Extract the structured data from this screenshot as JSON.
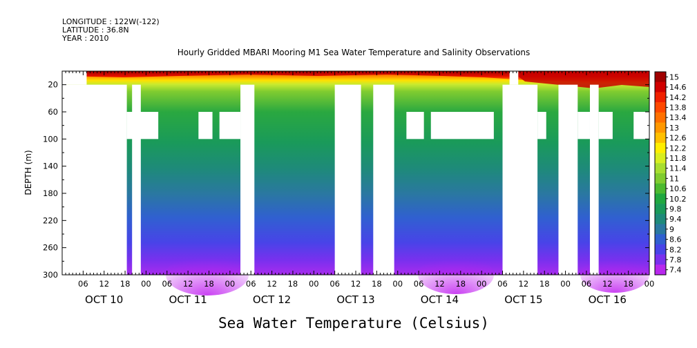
{
  "meta": {
    "longitude": "LONGITUDE : 122W(-122)",
    "latitude": "LATITUDE : 36.8N",
    "year": "YEAR : 2010"
  },
  "chart_data": {
    "type": "heatmap",
    "title": "Hourly Gridded MBARI Mooring M1 Sea Water Temperature and Salinity Observations",
    "xlabel": "Sea Water Temperature (Celsius)",
    "ylabel": "DEPTH (m)",
    "x_hour_range": [
      0,
      168
    ],
    "x_day_labels": [
      "OCT 10",
      "OCT 11",
      "OCT 12",
      "OCT 13",
      "OCT 14",
      "OCT 15",
      "OCT 16"
    ],
    "x_hour_ticks": [
      "06",
      "12",
      "18",
      "00"
    ],
    "ylim": [
      300,
      0
    ],
    "y_ticks": [
      20,
      60,
      100,
      140,
      180,
      220,
      260,
      300
    ],
    "colorbar_levels": [
      "15",
      "14.6",
      "14.2",
      "13.8",
      "13.4",
      "13",
      "12.6",
      "12.2",
      "11.8",
      "11.4",
      "11",
      "10.6",
      "10.2",
      "9.8",
      "9.4",
      "9",
      "8.6",
      "8.2",
      "7.8",
      "7.4"
    ],
    "colorbar_colors": [
      "#a00000",
      "#d00000",
      "#f02000",
      "#ff4800",
      "#ff7000",
      "#ff9800",
      "#ffc000",
      "#ffee00",
      "#d8ee20",
      "#a8de30",
      "#80cc30",
      "#4cba30",
      "#20a840",
      "#1a9a5a",
      "#1e8a7a",
      "#2a78a0",
      "#3060d0",
      "#4844e8",
      "#7a30ee",
      "#b828ee"
    ],
    "surface_temperature_c": [
      14.0,
      14.6
    ],
    "deep_temperature_c": [
      7.4,
      7.8
    ],
    "missing_data_intervals": [
      {
        "start_hour": 0,
        "end_hour": 7,
        "depth_top": 0,
        "depth_bottom": 20
      },
      {
        "start_hour": 0,
        "end_hour": 18.5,
        "depth_top": 20,
        "depth_bottom": 300
      },
      {
        "start_hour": 20,
        "end_hour": 22.5,
        "depth_top": 20,
        "depth_bottom": 300
      },
      {
        "start_hour": 18.5,
        "end_hour": 27.5,
        "depth_top": 60,
        "depth_bottom": 100
      },
      {
        "start_hour": 39,
        "end_hour": 43,
        "depth_top": 60,
        "depth_bottom": 100
      },
      {
        "start_hour": 45,
        "end_hour": 51,
        "depth_top": 60,
        "depth_bottom": 100
      },
      {
        "start_hour": 51,
        "end_hour": 55,
        "depth_top": 20,
        "depth_bottom": 300
      },
      {
        "start_hour": 78,
        "end_hour": 85.5,
        "depth_top": 20,
        "depth_bottom": 300
      },
      {
        "start_hour": 89,
        "end_hour": 95,
        "depth_top": 20,
        "depth_bottom": 300
      },
      {
        "start_hour": 98.5,
        "end_hour": 103.5,
        "depth_top": 60,
        "depth_bottom": 100
      },
      {
        "start_hour": 105.5,
        "end_hour": 123.5,
        "depth_top": 60,
        "depth_bottom": 100
      },
      {
        "start_hour": 126,
        "end_hour": 136,
        "depth_top": 20,
        "depth_bottom": 300
      },
      {
        "start_hour": 128,
        "end_hour": 130.5,
        "depth_top": 0,
        "depth_bottom": 20
      },
      {
        "start_hour": 136,
        "end_hour": 138.5,
        "depth_top": 60,
        "depth_bottom": 100
      },
      {
        "start_hour": 142,
        "end_hour": 147.5,
        "depth_top": 20,
        "depth_bottom": 300
      },
      {
        "start_hour": 147.5,
        "end_hour": 151,
        "depth_top": 60,
        "depth_bottom": 100
      },
      {
        "start_hour": 151,
        "end_hour": 153.5,
        "depth_top": 20,
        "depth_bottom": 300
      },
      {
        "start_hour": 153.5,
        "end_hour": 157.5,
        "depth_top": 60,
        "depth_bottom": 100
      },
      {
        "start_hour": 163.5,
        "end_hour": 168,
        "depth_top": 60,
        "depth_bottom": 100
      }
    ]
  }
}
